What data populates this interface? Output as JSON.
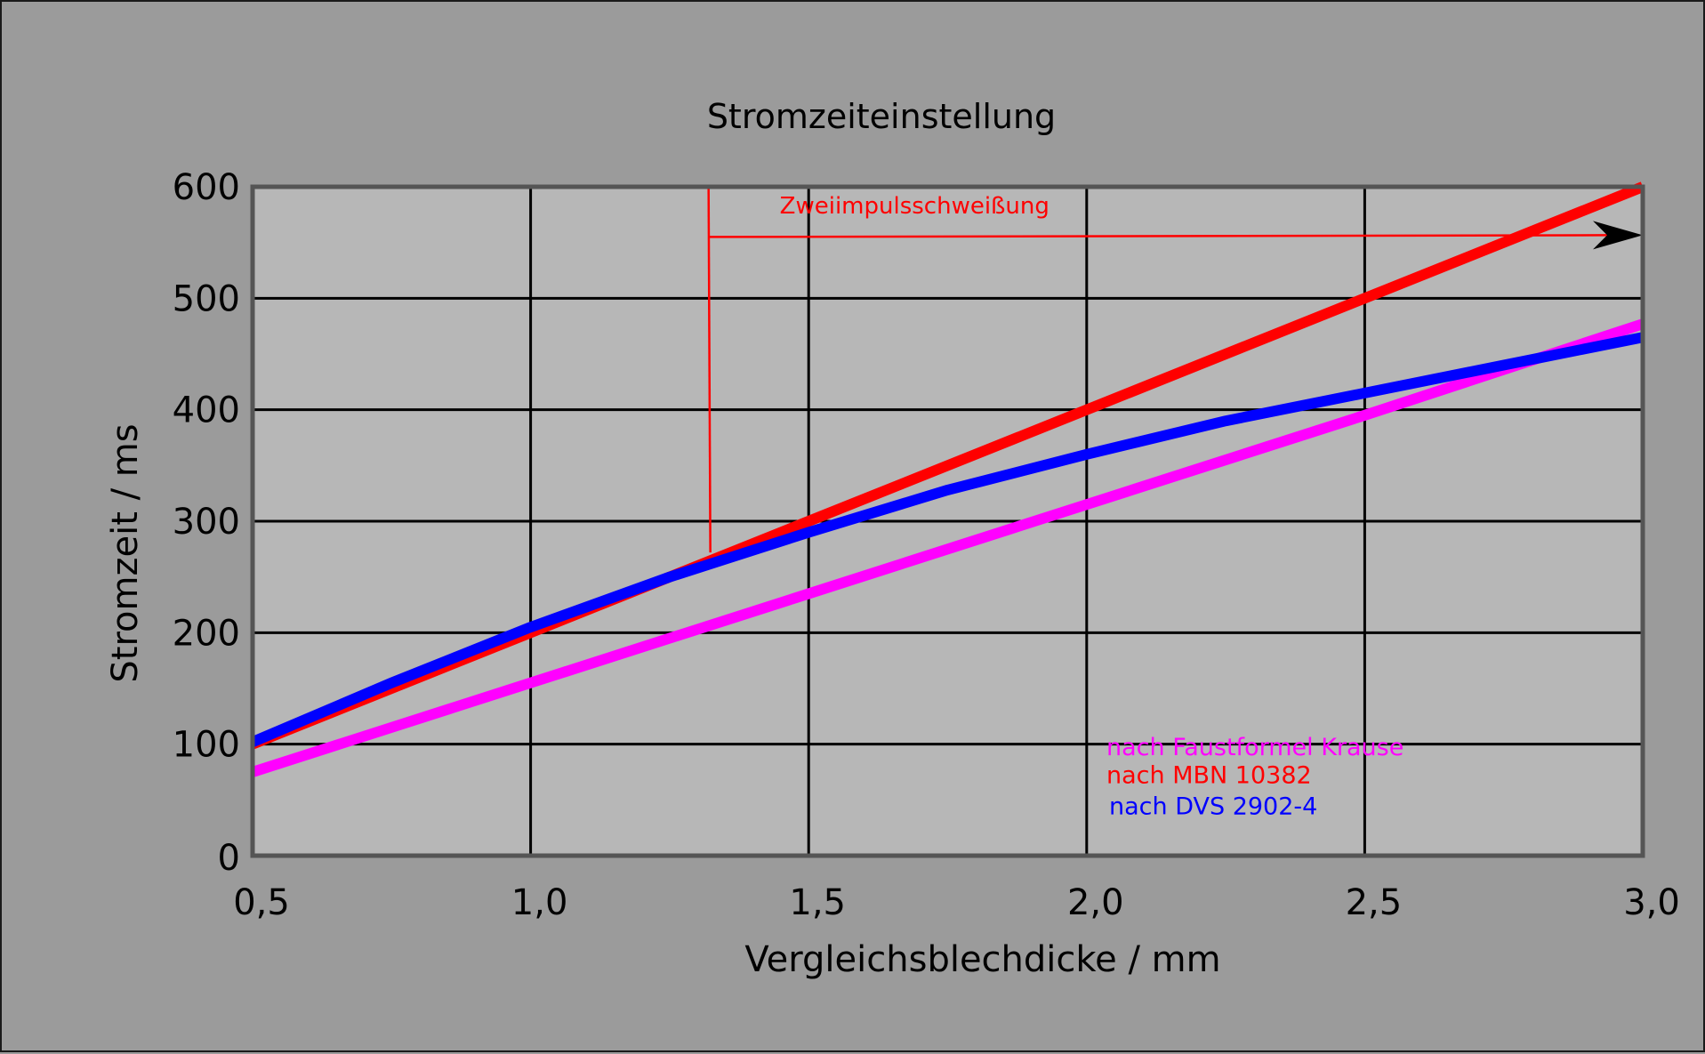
{
  "chart_data": {
    "type": "line",
    "title": "Stromzeiteinstellung",
    "xlabel": "Vergleichsblechdicke / mm",
    "ylabel": "Stromzeit / ms",
    "xlim": [
      0.5,
      3.0
    ],
    "ylim": [
      0,
      600
    ],
    "x_ticks": [
      0.5,
      1.0,
      1.5,
      2.0,
      2.5,
      3.0
    ],
    "x_tick_labels": [
      "0,5",
      "1,0",
      "1,5",
      "2,0",
      "2,5",
      "3,0"
    ],
    "y_ticks": [
      0,
      100,
      200,
      300,
      400,
      500,
      600
    ],
    "y_tick_labels": [
      "0",
      "100",
      "200",
      "300",
      "400",
      "500",
      "600"
    ],
    "grid": true,
    "series": [
      {
        "name": "nach MBN 10382",
        "color": "#ff0000",
        "points": [
          [
            0.5,
            100
          ],
          [
            1.0,
            200
          ],
          [
            1.5,
            300
          ],
          [
            2.0,
            400
          ],
          [
            2.5,
            500
          ],
          [
            3.0,
            600
          ]
        ]
      },
      {
        "name": "nach DVS 2902-4",
        "color": "#0000ff",
        "points": [
          [
            0.5,
            102
          ],
          [
            0.75,
            155
          ],
          [
            1.0,
            205
          ],
          [
            1.25,
            250
          ],
          [
            1.5,
            290
          ],
          [
            1.75,
            328
          ],
          [
            2.0,
            360
          ],
          [
            2.25,
            390
          ],
          [
            2.5,
            415
          ],
          [
            2.75,
            440
          ],
          [
            3.0,
            465
          ]
        ]
      },
      {
        "name": "nach Faustformel Krause",
        "color": "#ff00ff",
        "points": [
          [
            0.5,
            75
          ],
          [
            1.0,
            155
          ],
          [
            1.5,
            235
          ],
          [
            2.0,
            315
          ],
          [
            2.5,
            395
          ],
          [
            3.0,
            477
          ]
        ]
      }
    ],
    "legend": {
      "placement": "lower-right",
      "entries": [
        {
          "label": "nach Faustformel Krause",
          "color": "#ff00ff"
        },
        {
          "label": "nach MBN 10382",
          "color": "#ff0000"
        },
        {
          "label": "nach DVS 2902-4",
          "color": "#0000ff"
        }
      ]
    },
    "annotation": {
      "text": "Zweiimpulsschweißung",
      "color": "#ff0000",
      "x_start": 1.32,
      "y_arrow": 555,
      "y_bottom": 272
    }
  },
  "colors": {
    "background": "#9b9b9b",
    "plot_area": "#b7b7b7",
    "grid": "#000000",
    "axes": "#555555"
  }
}
